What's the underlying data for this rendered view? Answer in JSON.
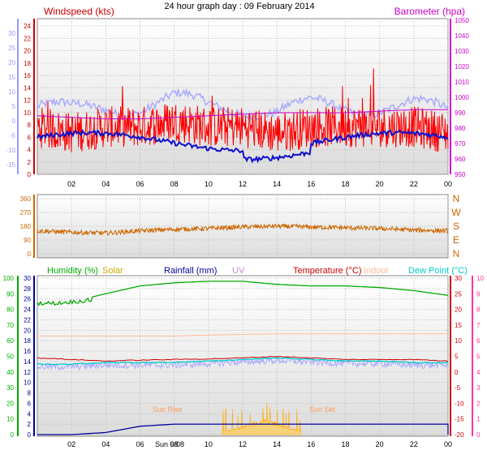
{
  "title": "24 hour graph day : 09 February 2014",
  "colors": {
    "windspeed": "#ff0000",
    "gust_line": "#c00000",
    "wind_blue": "#1010cc",
    "temp_axis_blue": "#9999ff",
    "barometer": "#cc00cc",
    "direction": "#cc6600",
    "humidity": "#00aa00",
    "solar": "#ccaa00",
    "rainfall": "#000099",
    "uv": "#cc88cc",
    "temperature": "#cc0000",
    "indoor": "#ffbb99",
    "dewpoint": "#00cccc",
    "temp_axis_red": "#ff3399",
    "chill": "#aaaaff"
  },
  "x_ticks": [
    "02",
    "04",
    "06",
    "08",
    "10",
    "12",
    "14",
    "16",
    "18",
    "20",
    "22",
    "00"
  ],
  "panel1": {
    "left_label": "Windspeed (kts)",
    "right_label": "Barometer (hpa)",
    "left_ticks": [
      "24",
      "22",
      "20",
      "18",
      "16",
      "14",
      "12",
      "10",
      "8",
      "6",
      "4",
      "2",
      "0"
    ],
    "right_ticks": [
      "1050",
      "1040",
      "1030",
      "1020",
      "1010",
      "1000",
      "990",
      "980",
      "970",
      "960",
      "950"
    ],
    "temp_ticks": [
      "30",
      "25",
      "20",
      "15",
      "10",
      "5",
      "0",
      "-5",
      "-10",
      "-15"
    ]
  },
  "panel2": {
    "left_ticks": [
      "360",
      "270",
      "180",
      "90",
      "0"
    ],
    "right_ticks": [
      "N",
      "W",
      "S",
      "E",
      "N"
    ]
  },
  "panel3": {
    "legend": {
      "humidity": "Humidity (%)",
      "solar": "Solar",
      "rainfall": "Rainfall (mm)",
      "uv": "UV",
      "temperature": "Temperature (°C)",
      "indoor": "Indoor",
      "dewpoint": "Dew Point (°C)"
    },
    "humidity_ticks": [
      "100",
      "90",
      "80",
      "70",
      "60",
      "50",
      "40",
      "30",
      "20",
      "10",
      "0"
    ],
    "inner_ticks": [
      "30",
      "28",
      "26",
      "24",
      "22",
      "20",
      "18",
      "16",
      "14",
      "12",
      "10",
      "8",
      "6",
      "4",
      "2",
      "0"
    ],
    "temp_ticks": [
      "30",
      "25",
      "20",
      "15",
      "10",
      "5",
      "0",
      "-5",
      "-10",
      "-15",
      "-20"
    ],
    "small_ticks": [
      "10",
      "9",
      "8",
      "7",
      "6",
      "5",
      "4",
      "3",
      "2",
      "1",
      "0"
    ],
    "sun_rise_label": "Sun Rise",
    "sun_set_label": "Sun Set",
    "sun_marker_label": "Sun 9/08"
  },
  "chart_data": [
    {
      "type": "line",
      "title": "24 hour graph day : 09 February 2014",
      "xlabel": "",
      "ylabel": "Windspeed (kts)",
      "ylim": [
        0,
        25
      ],
      "y2label": "Barometer (hpa)",
      "y2lim": [
        950,
        1050
      ],
      "x": [
        "00",
        "02",
        "04",
        "06",
        "08",
        "10",
        "12",
        "14",
        "16",
        "18",
        "20",
        "22",
        "00"
      ],
      "series": [
        {
          "name": "Windspeed (kts)",
          "values": [
            8,
            7,
            8,
            8,
            9,
            8,
            8,
            7,
            8,
            8,
            8,
            8,
            7
          ]
        },
        {
          "name": "Barometer (hpa)",
          "values": [
            988,
            987,
            986,
            986,
            987,
            988,
            989,
            990,
            990,
            990,
            991,
            992,
            992
          ]
        }
      ],
      "grid": true
    },
    {
      "type": "line",
      "ylabel": "Wind direction",
      "ylim": [
        0,
        360
      ],
      "x": [
        "00",
        "02",
        "04",
        "06",
        "08",
        "10",
        "12",
        "14",
        "16",
        "18",
        "20",
        "22",
        "00"
      ],
      "series": [
        {
          "name": "Direction",
          "values": [
            150,
            140,
            135,
            150,
            160,
            165,
            175,
            180,
            175,
            170,
            165,
            155,
            150
          ]
        }
      ],
      "grid": true
    },
    {
      "type": "line",
      "ylim": [
        0,
        100
      ],
      "y2lim": [
        -20,
        30
      ],
      "x": [
        "00",
        "02",
        "04",
        "06",
        "08",
        "10",
        "12",
        "14",
        "16",
        "18",
        "20",
        "22",
        "00"
      ],
      "series": [
        {
          "name": "Humidity (%)",
          "values": [
            84,
            85,
            90,
            95,
            97,
            98,
            98,
            96,
            95,
            95,
            94,
            92,
            89
          ]
        },
        {
          "name": "Temperature (°C)",
          "values": [
            4.5,
            4.0,
            3.5,
            3.8,
            4.0,
            4.2,
            4.5,
            5.0,
            4.5,
            4.0,
            4.0,
            4.0,
            3.5
          ]
        },
        {
          "name": "Indoor",
          "values": [
            11.5,
            11.5,
            11.5,
            11.5,
            11.5,
            11.8,
            12.0,
            12.2,
            12.2,
            12.2,
            12.2,
            12.2,
            12.2
          ]
        },
        {
          "name": "Dew Point (°C)",
          "values": [
            2.5,
            2.5,
            3.0,
            3.0,
            3.0,
            3.5,
            4.0,
            4.5,
            4.0,
            3.5,
            3.5,
            3.0,
            3.0
          ]
        },
        {
          "name": "Rainfall (mm)",
          "values": [
            0,
            0,
            0.4,
            1.6,
            2.0,
            2.0,
            2.0,
            2.0,
            2.0,
            2.0,
            2.0,
            2.0,
            2.0
          ]
        },
        {
          "name": "Solar",
          "values": [
            0,
            0,
            0,
            0,
            0,
            0,
            0.5,
            2.0,
            0.5,
            0,
            0,
            0,
            0
          ]
        }
      ],
      "grid": true
    }
  ]
}
